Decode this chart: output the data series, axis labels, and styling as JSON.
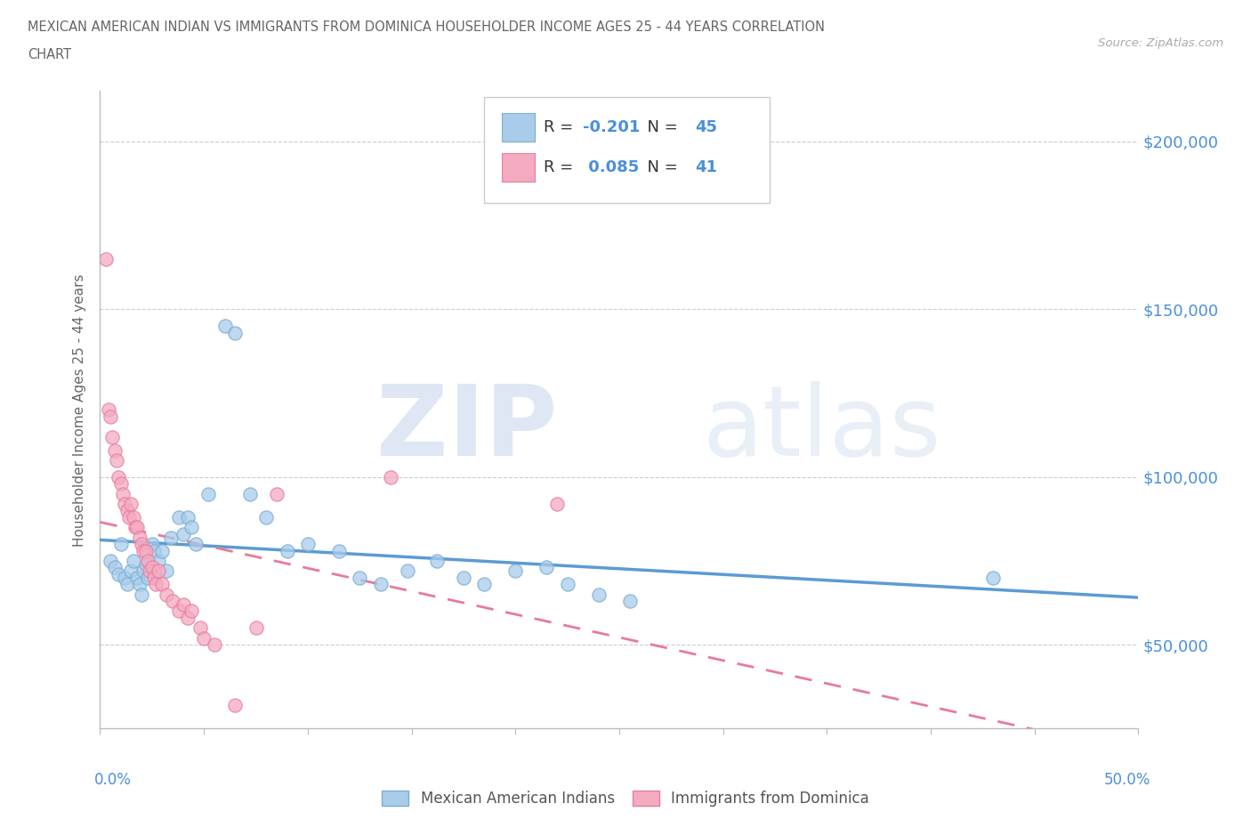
{
  "title_line1": "MEXICAN AMERICAN INDIAN VS IMMIGRANTS FROM DOMINICA HOUSEHOLDER INCOME AGES 25 - 44 YEARS CORRELATION",
  "title_line2": "CHART",
  "source_text": "Source: ZipAtlas.com",
  "ylabel": "Householder Income Ages 25 - 44 years",
  "xlim": [
    0.0,
    0.5
  ],
  "ylim": [
    25000,
    215000
  ],
  "yticks": [
    50000,
    100000,
    150000,
    200000
  ],
  "xticks": [
    0.0,
    0.05,
    0.1,
    0.15,
    0.2,
    0.25,
    0.3,
    0.35,
    0.4,
    0.45,
    0.5
  ],
  "blue_color": "#A8CCEA",
  "pink_color": "#F4AABF",
  "blue_edge_color": "#7AADD4",
  "pink_edge_color": "#E87DA0",
  "blue_line_color": "#5B9BD5",
  "pink_line_color": "#E8799A",
  "R_blue": -0.201,
  "N_blue": 45,
  "R_pink": 0.085,
  "N_pink": 41,
  "legend_label_blue": "Mexican American Indians",
  "legend_label_pink": "Immigrants from Dominica",
  "blue_x": [
    0.005,
    0.007,
    0.009,
    0.01,
    0.012,
    0.013,
    0.015,
    0.016,
    0.018,
    0.019,
    0.02,
    0.021,
    0.022,
    0.023,
    0.025,
    0.026,
    0.028,
    0.03,
    0.032,
    0.034,
    0.038,
    0.04,
    0.042,
    0.044,
    0.046,
    0.052,
    0.06,
    0.065,
    0.072,
    0.08,
    0.09,
    0.1,
    0.115,
    0.125,
    0.135,
    0.148,
    0.162,
    0.175,
    0.185,
    0.2,
    0.215,
    0.225,
    0.24,
    0.255,
    0.43
  ],
  "blue_y": [
    75000,
    73000,
    71000,
    80000,
    70000,
    68000,
    72000,
    75000,
    70000,
    68000,
    65000,
    72000,
    74000,
    70000,
    80000,
    78000,
    75000,
    78000,
    72000,
    82000,
    88000,
    83000,
    88000,
    85000,
    80000,
    95000,
    145000,
    143000,
    95000,
    88000,
    78000,
    80000,
    78000,
    70000,
    68000,
    72000,
    75000,
    70000,
    68000,
    72000,
    73000,
    68000,
    65000,
    63000,
    70000
  ],
  "pink_x": [
    0.003,
    0.004,
    0.005,
    0.006,
    0.007,
    0.008,
    0.009,
    0.01,
    0.011,
    0.012,
    0.013,
    0.014,
    0.015,
    0.016,
    0.017,
    0.018,
    0.019,
    0.02,
    0.021,
    0.022,
    0.023,
    0.024,
    0.025,
    0.026,
    0.027,
    0.028,
    0.03,
    0.032,
    0.035,
    0.038,
    0.04,
    0.042,
    0.044,
    0.048,
    0.05,
    0.055,
    0.065,
    0.075,
    0.085,
    0.14,
    0.22
  ],
  "pink_y": [
    165000,
    120000,
    118000,
    112000,
    108000,
    105000,
    100000,
    98000,
    95000,
    92000,
    90000,
    88000,
    92000,
    88000,
    85000,
    85000,
    82000,
    80000,
    78000,
    78000,
    75000,
    72000,
    73000,
    70000,
    68000,
    72000,
    68000,
    65000,
    63000,
    60000,
    62000,
    58000,
    60000,
    55000,
    52000,
    50000,
    32000,
    55000,
    95000,
    100000,
    92000
  ]
}
